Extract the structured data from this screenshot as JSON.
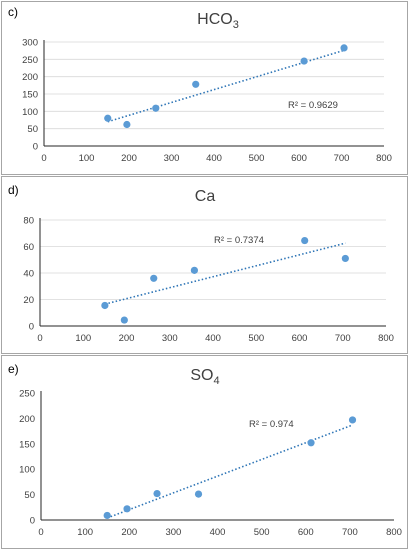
{
  "chart_data": [
    {
      "type": "scatter",
      "panel": "c)",
      "title": "HCO",
      "title_sub": "3",
      "xlim": [
        0,
        800
      ],
      "ylim": [
        0,
        300
      ],
      "xticks": [
        0,
        100,
        200,
        300,
        400,
        500,
        600,
        700,
        800
      ],
      "yticks": [
        0,
        50,
        100,
        150,
        200,
        250,
        300
      ],
      "grid": true,
      "series": [
        {
          "x": [
            150,
            195,
            263,
            357,
            612,
            706
          ],
          "y": [
            80,
            62,
            109,
            178,
            245,
            283
          ]
        }
      ],
      "trendline": {
        "x": [
          150,
          706
        ],
        "y": [
          70,
          276
        ]
      },
      "r2_label": "R² = 0.9629"
    },
    {
      "type": "scatter",
      "panel": "d)",
      "title": "Ca",
      "title_sub": "",
      "xlim": [
        0,
        800
      ],
      "ylim": [
        0,
        80
      ],
      "xticks": [
        0,
        100,
        200,
        300,
        400,
        500,
        600,
        700,
        800
      ],
      "yticks": [
        0,
        20,
        40,
        60,
        80
      ],
      "grid": true,
      "series": [
        {
          "x": [
            150,
            195,
            263,
            357,
            612,
            706
          ],
          "y": [
            15.5,
            4.5,
            36,
            42,
            64.5,
            51
          ]
        }
      ],
      "trendline": {
        "x": [
          150,
          706
        ],
        "y": [
          16.5,
          62.5
        ]
      },
      "r2_label": "R² = 0.7374"
    },
    {
      "type": "scatter",
      "panel": "e)",
      "title": "SO",
      "title_sub": "4",
      "xlim": [
        0,
        800
      ],
      "ylim": [
        0,
        250
      ],
      "xticks": [
        0,
        100,
        200,
        300,
        400,
        500,
        600,
        700,
        800
      ],
      "yticks": [
        0,
        50,
        100,
        150,
        200,
        250
      ],
      "grid": false,
      "series": [
        {
          "x": [
            150,
            195,
            263,
            357,
            612,
            706
          ],
          "y": [
            9,
            22,
            52,
            51,
            152,
            197
          ]
        }
      ],
      "trendline": {
        "x": [
          150,
          706
        ],
        "y": [
          4,
          187
        ]
      },
      "r2_label": "R² = 0.974"
    }
  ]
}
